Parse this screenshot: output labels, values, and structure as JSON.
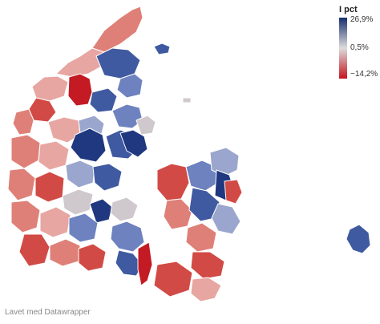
{
  "legend": {
    "title": "I pct",
    "max_label": "26,9%",
    "mid_label": "0,5%",
    "min_label": "−14,2%",
    "scale": {
      "max": 26.9,
      "mid": 0.5,
      "min": -14.2
    },
    "colors": {
      "high": "#172f6e",
      "mid": "#dcdcdc",
      "low": "#c6141f"
    }
  },
  "credit": "Lavet med Datawrapper",
  "palette": {
    "dark_blue": "#203880",
    "blue": "#3f5aa0",
    "mid_blue": "#6d82bf",
    "light_blue": "#9aa6cd",
    "gray": "#cfc8cc",
    "light_red": "#e7a6a1",
    "salmon": "#df8078",
    "red": "#d24a45",
    "dark_red": "#c31a24",
    "border": "#ffffff"
  }
}
